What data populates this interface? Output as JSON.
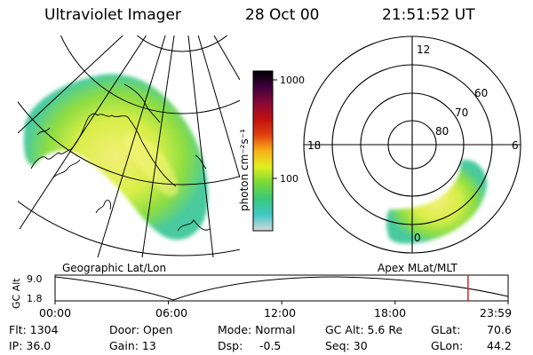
{
  "header": {
    "title": "Ultraviolet Imager",
    "date": "28 Oct 00",
    "time": "21:51:52 UT"
  },
  "colorbar": {
    "ticks": [
      "1000",
      "100"
    ],
    "unit": "photon cm⁻²s⁻¹",
    "stops": [
      "#d8d8d8",
      "#40c8c8",
      "#38c878",
      "#78d838",
      "#e0f020",
      "#f8b018",
      "#e04010",
      "#c01010",
      "#880838",
      "#400040",
      "#000000"
    ]
  },
  "polar_plot": {
    "mlt_labels": {
      "top": "12",
      "left": "18",
      "right": "6",
      "bottom": "0"
    },
    "lat_labels": [
      "60",
      "70",
      "80"
    ]
  },
  "captions": {
    "left": "Geographic Lat/Lon",
    "right": "Apex  MLat/MLT"
  },
  "timeline": {
    "ylabel": "GC Alt",
    "y_ticks": [
      "9.0",
      "1.8"
    ],
    "x_ticks": [
      "00:00",
      "06:00",
      "12:00",
      "18:00",
      "23:59"
    ],
    "marker_time_hours": 21.86,
    "marker_color": "#e02020"
  },
  "footer": {
    "flt": "Flt: 1304",
    "ip": "IP: 36.0",
    "door": "Door: Open",
    "gain": "Gain: 13",
    "mode": "Mode: Normal",
    "dsp_label": "Dsp:",
    "dsp_value": "-0.5",
    "gc_alt": "GC Alt: 5.6 Re",
    "seq": "Seq: 30",
    "glat_label": "GLat:",
    "glat_value": "70.6",
    "glon_label": "GLon:",
    "glon_value": "44.2"
  }
}
